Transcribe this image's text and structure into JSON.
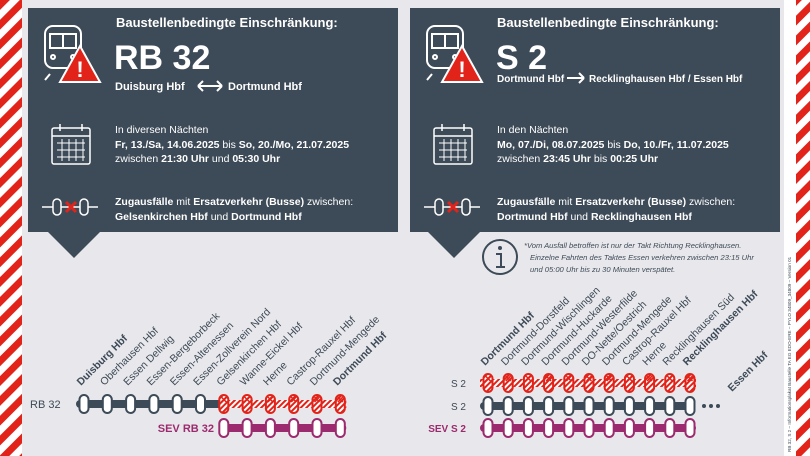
{
  "sidebar": "RB 32, S 2 – Informationsplakat Baustelle TA EG EDO-ERE – PYLO 34809_34809 – Version 01",
  "left": {
    "heading": "Baustellenbedingte Einschränkung:",
    "line": "RB 32",
    "from": "Duisburg Hbf",
    "to": "Dortmund Hbf",
    "period": "In diversen Nächten",
    "dates": [
      "Fr, 13./Sa, 14.06.2025",
      " bis ",
      "So, 20./Mo, 21.07.2025"
    ],
    "times": [
      "zwischen ",
      "21:30 Uhr",
      " und ",
      "05:30 Uhr"
    ],
    "impact": [
      "Zugausfälle",
      " mit ",
      "Ersatzverkehr (Busse)",
      " zwischen:"
    ],
    "section": [
      "Gelsenkirchen Hbf",
      " und ",
      "Dortmund Hbf"
    ]
  },
  "right": {
    "heading": "Baustellenbedingte Einschränkung:",
    "line": "S 2",
    "from": "Dortmund Hbf",
    "to": "Recklinghausen Hbf / Essen Hbf",
    "period": "In den Nächten",
    "dates": [
      "Mo, 07./Di, 08.07.2025",
      " bis ",
      "Do, 10./Fr, 11.07.2025"
    ],
    "times": [
      "zwischen ",
      "23:45 Uhr",
      " bis ",
      "00:25 Uhr"
    ],
    "impact": [
      "Zugausfälle",
      " mit ",
      "Ersatzverkehr (Busse)",
      " zwischen:"
    ],
    "section": [
      "Dortmund Hbf",
      " und ",
      "Recklinghausen Hbf"
    ]
  },
  "note": [
    "*Vom Ausfall betroffen ist nur der Takt Richtung Recklinghausen.",
    "Einzelne Fahrten des Taktes Essen verkehren zwischen 23:15 Uhr",
    "und 05:00 Uhr bis zu 30 Minuten verspätet."
  ],
  "left_route": {
    "line_label": "RB 32",
    "sev_label": "SEV RB 32",
    "stations": [
      "Duisburg Hbf",
      "Oberhausen Hbf",
      "Essen Dellwig",
      "Essen-Bergeborbeck",
      "Essen-Altenessen",
      "Essen-Zollverein Nord",
      "Gelsenkirchen Hbf",
      "Wanne-Eickel Hbf",
      "Herne",
      "Castrop-Rauxel Hbf",
      "Dortmund-Mengede",
      "Dortmund Hbf"
    ]
  },
  "right_route": {
    "line_labels": [
      "S 2",
      "S 2"
    ],
    "sev_label": "SEV S 2",
    "stations": [
      "Dortmund Hbf",
      "Dortmund-Dorstfeld",
      "Dortmund-Wischlingen",
      "Dortmund-Huckarde",
      "Dortmund-Westerfilde",
      "DO-Nette/Oestrich",
      "Dortmund-Mengede",
      "Castrop-Rauxel Hbf",
      "Herne",
      "Recklinghausen Süd",
      "Recklinghausen Hbf",
      "Essen Hbf"
    ]
  }
}
